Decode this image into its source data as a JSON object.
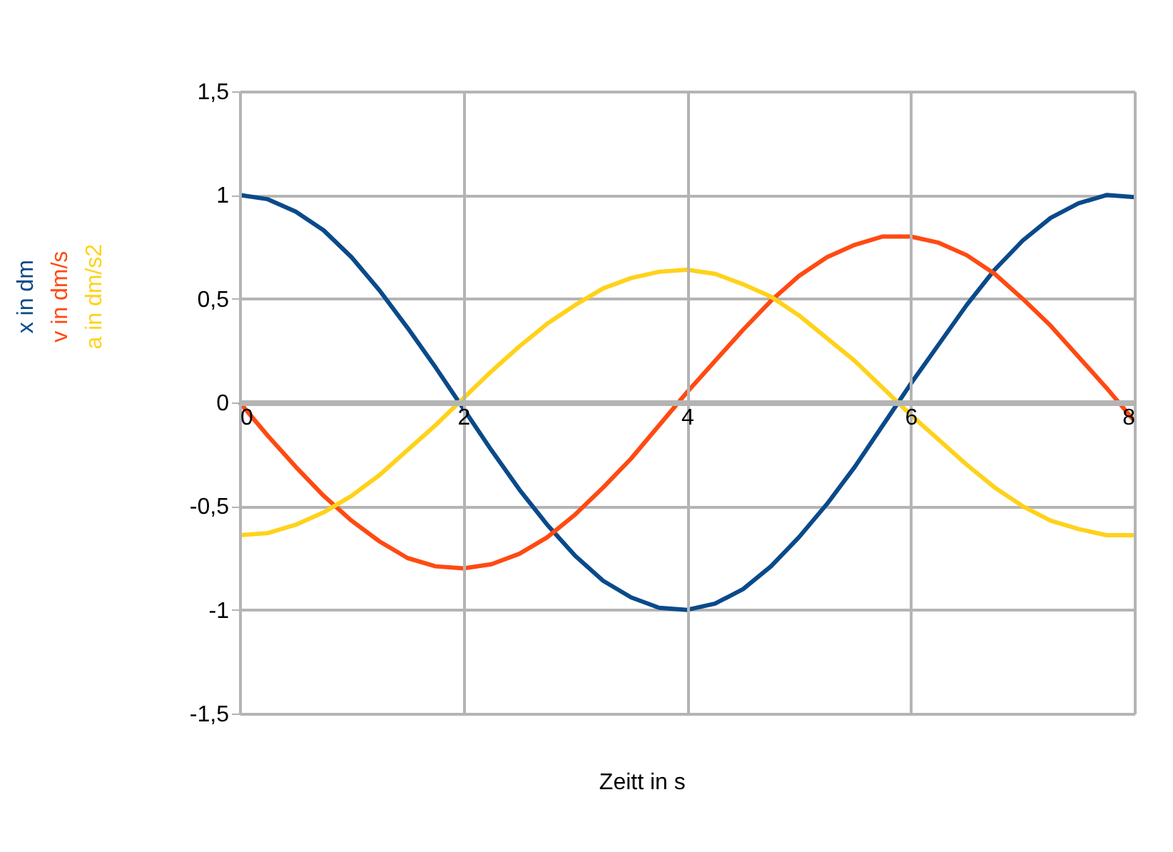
{
  "chart_data": {
    "type": "line",
    "xlabel": "Zeitt in s",
    "x": [
      0,
      0.25,
      0.5,
      0.75,
      1,
      1.25,
      1.5,
      1.75,
      2,
      2.25,
      2.5,
      2.75,
      3,
      3.25,
      3.5,
      3.75,
      4,
      4.25,
      4.5,
      4.75,
      5,
      5.25,
      5.5,
      5.75,
      6,
      6.25,
      6.5,
      6.75,
      7,
      7.25,
      7.5,
      7.75,
      8
    ],
    "series": [
      {
        "name": "x in dm",
        "color": "#0a4a8a",
        "values": [
          1,
          0.98,
          0.92,
          0.83,
          0.7,
          0.54,
          0.36,
          0.17,
          -0.03,
          -0.23,
          -0.42,
          -0.59,
          -0.74,
          -0.86,
          -0.94,
          -0.99,
          -1.0,
          -0.97,
          -0.9,
          -0.79,
          -0.65,
          -0.49,
          -0.31,
          -0.11,
          0.09,
          0.28,
          0.47,
          0.64,
          0.78,
          0.89,
          0.96,
          1.0,
          0.99
        ]
      },
      {
        "name": "v in dm/s",
        "color": "#ff4a12",
        "values": [
          0,
          -0.16,
          -0.31,
          -0.45,
          -0.57,
          -0.67,
          -0.75,
          -0.79,
          -0.8,
          -0.78,
          -0.73,
          -0.65,
          -0.54,
          -0.41,
          -0.27,
          -0.11,
          0.05,
          0.2,
          0.35,
          0.49,
          0.61,
          0.7,
          0.76,
          0.8,
          0.8,
          0.77,
          0.71,
          0.62,
          0.5,
          0.37,
          0.22,
          0.07,
          -0.09
        ]
      },
      {
        "name": "a in dm/s2",
        "color": "#ffd21a",
        "values": [
          -0.64,
          -0.63,
          -0.59,
          -0.53,
          -0.45,
          -0.35,
          -0.23,
          -0.11,
          0.02,
          0.15,
          0.27,
          0.38,
          0.47,
          0.55,
          0.6,
          0.63,
          0.64,
          0.62,
          0.57,
          0.51,
          0.42,
          0.31,
          0.2,
          0.07,
          -0.06,
          -0.18,
          -0.3,
          -0.41,
          -0.5,
          -0.57,
          -0.61,
          -0.64,
          -0.64
        ]
      }
    ],
    "xlim": [
      0,
      8
    ],
    "xticks": [
      0,
      2,
      4,
      6,
      8
    ],
    "ylim": [
      -1.5,
      1.5
    ],
    "yticks": [
      {
        "value": -1.5,
        "label": "-1,5"
      },
      -1,
      {
        "value": -0.5,
        "label": "-0,5"
      },
      0,
      {
        "value": 0.5,
        "label": "0,5"
      },
      1,
      {
        "value": 1.5,
        "label": "1,5"
      }
    ],
    "grid": true,
    "legend": "left",
    "marker": "none",
    "line_style": "solid"
  }
}
